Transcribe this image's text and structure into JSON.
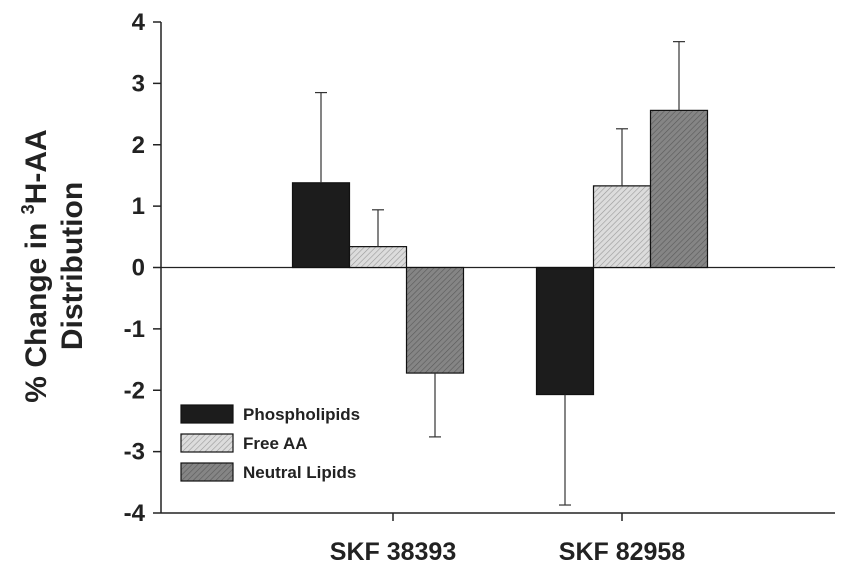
{
  "chart_data": {
    "type": "bar",
    "categories": [
      "SKF 38393",
      "SKF 82958"
    ],
    "ylabel_line1_prefix": "% Change in ",
    "ylabel_sup": "3",
    "ylabel_line1_suffix": "H-AA",
    "ylabel_line2": "Distribution",
    "ylim": [
      -4,
      4
    ],
    "yticks": [
      -4,
      -3,
      -2,
      -1,
      0,
      1,
      2,
      3,
      4
    ],
    "grid": false,
    "legend_position": "bottom-left",
    "series": [
      {
        "name": "Phospholipids",
        "values": [
          1.38,
          -2.07
        ],
        "errors": [
          1.47,
          1.8
        ],
        "color": "#1c1c1c"
      },
      {
        "name": "Free AA",
        "values": [
          0.34,
          1.33
        ],
        "errors": [
          0.6,
          0.93
        ],
        "color": "#d8d8d8"
      },
      {
        "name": "Neutral Lipids",
        "values": [
          -1.72,
          2.56
        ],
        "errors": [
          1.04,
          1.12
        ],
        "color": "#7a7a7a"
      }
    ]
  }
}
